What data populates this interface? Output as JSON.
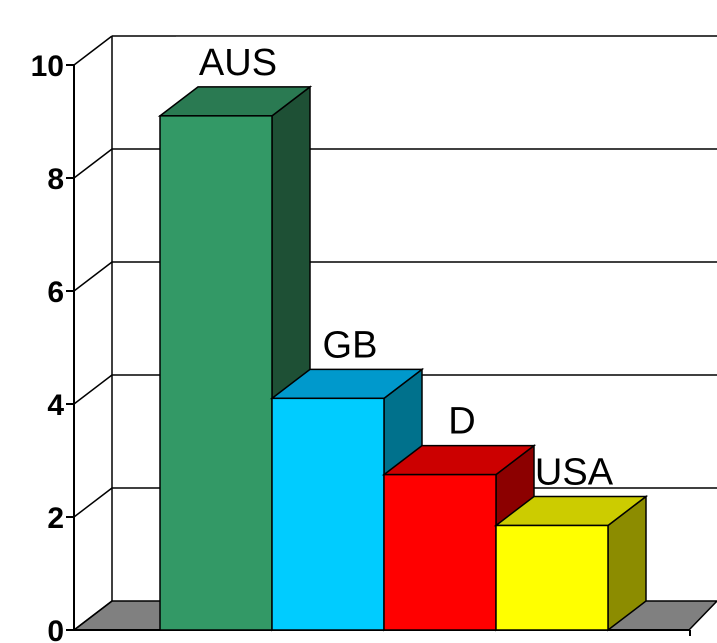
{
  "chart_data": {
    "type": "bar",
    "categories": [
      "AUS",
      "GB",
      "D",
      "USA"
    ],
    "values": [
      9.1,
      4.1,
      2.75,
      1.85
    ],
    "ylim": [
      0,
      10
    ],
    "yticks": [
      "0",
      "2",
      "4",
      "6",
      "8",
      "10"
    ],
    "grid": true,
    "style": "3d",
    "colors": [
      {
        "front": "#339966",
        "side": "#1E5035",
        "top": "#2A7A52"
      },
      {
        "front": "#00CCFF",
        "side": "#00718C",
        "top": "#0099CC"
      },
      {
        "front": "#FF0000",
        "side": "#8C0000",
        "top": "#CC0000"
      },
      {
        "front": "#FFFF00",
        "side": "#8C8C00",
        "top": "#CCCC00"
      }
    ],
    "floor_color": "#808080"
  }
}
